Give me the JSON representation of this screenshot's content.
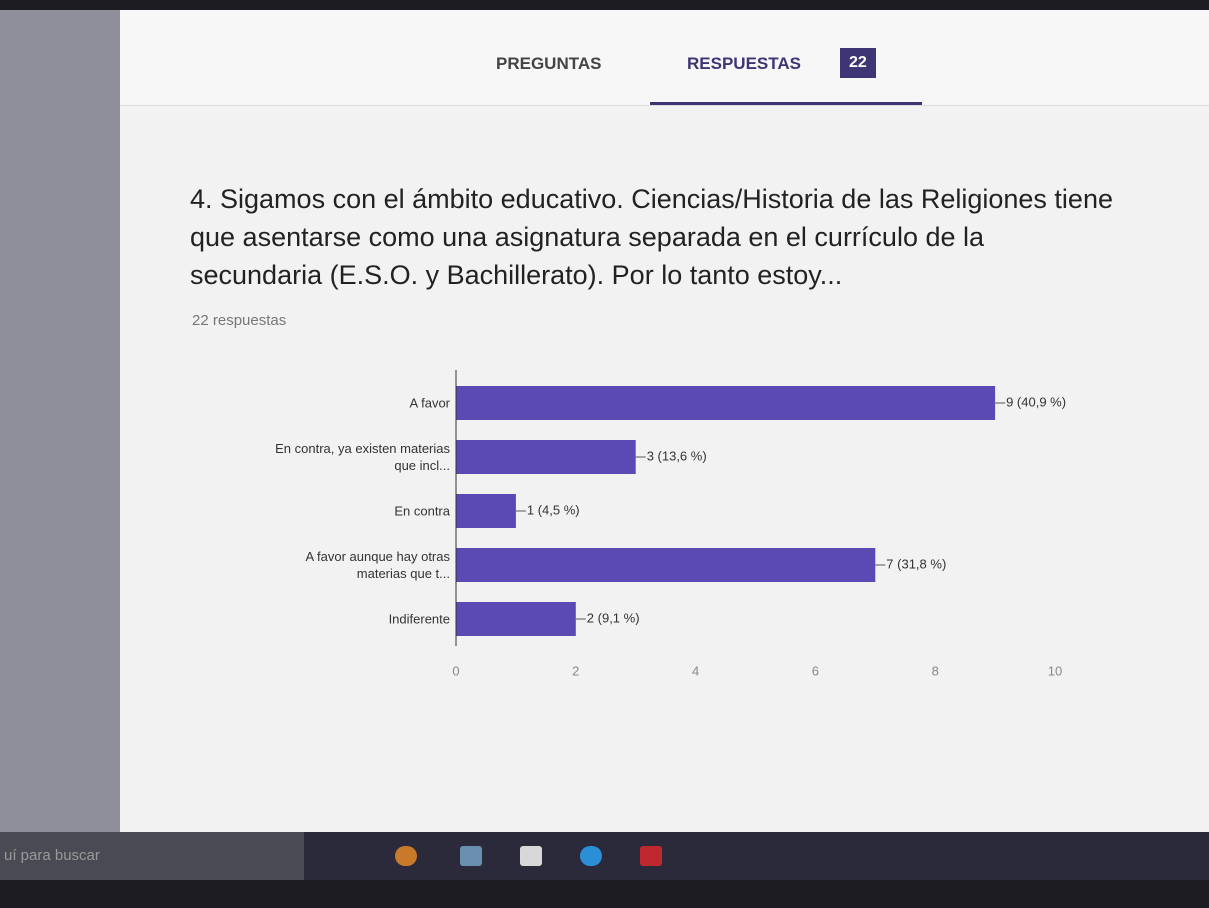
{
  "header": {
    "tabs": [
      "PREGUNTAS",
      "RESPUESTAS"
    ],
    "count": "22"
  },
  "question": {
    "title": "4. Sigamos con el ámbito educativo. Ciencias/Historia de las Religiones tiene que asentarse como una asignatura separada en el currículo de la secundaria (E.S.O. y Bachillerato). Por lo tanto estoy...",
    "responses": "22 respuestas"
  },
  "chart_data": {
    "type": "bar",
    "orientation": "horizontal",
    "categories": [
      "A favor",
      "En contra, ya existen materias que incl...",
      "En contra",
      "A favor aunque hay otras materias que t...",
      "Indiferente"
    ],
    "values": [
      9,
      3,
      1,
      7,
      2
    ],
    "value_labels": [
      "9 (40,9 %)",
      "3 (13,6 %)",
      "1 (4,5 %)",
      "7 (31,8 %)",
      "2 (9,1 %)"
    ],
    "color": "#5b4ab3",
    "xlim": [
      0,
      10
    ],
    "xticks": [
      0,
      2,
      4,
      6,
      8,
      10
    ],
    "grid": false
  },
  "taskbar": {
    "search": "uí para buscar"
  }
}
